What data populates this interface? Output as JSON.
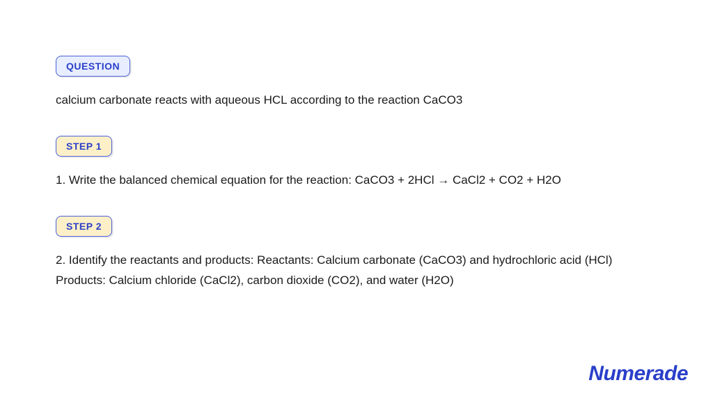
{
  "sections": [
    {
      "tag": "QUESTION",
      "tag_style": "question",
      "text": "calcium carbonate reacts with aqueous HCL according to the reaction CaCO3"
    },
    {
      "tag": "STEP 1",
      "tag_style": "step",
      "text": "1. Write the balanced chemical equation for the reaction: CaCO3 + 2HCl → CaCl2 + CO2 + H2O"
    },
    {
      "tag": "STEP 2",
      "tag_style": "step",
      "text": "2. Identify the reactants and products: Reactants: Calcium carbonate (CaCO3) and hydrochloric acid (HCl) Products: Calcium chloride (CaCl2), carbon dioxide (CO2), and water (H2O)"
    }
  ],
  "logo_text": "Numerade",
  "colors": {
    "accent": "#2a3fc9",
    "question_bg": "#e8eeff",
    "step_bg": "#fdf0c8",
    "text": "#1a1a1a",
    "background": "#ffffff"
  },
  "typography": {
    "tag_fontsize": 14,
    "body_fontsize": 17,
    "logo_fontsize": 30
  }
}
